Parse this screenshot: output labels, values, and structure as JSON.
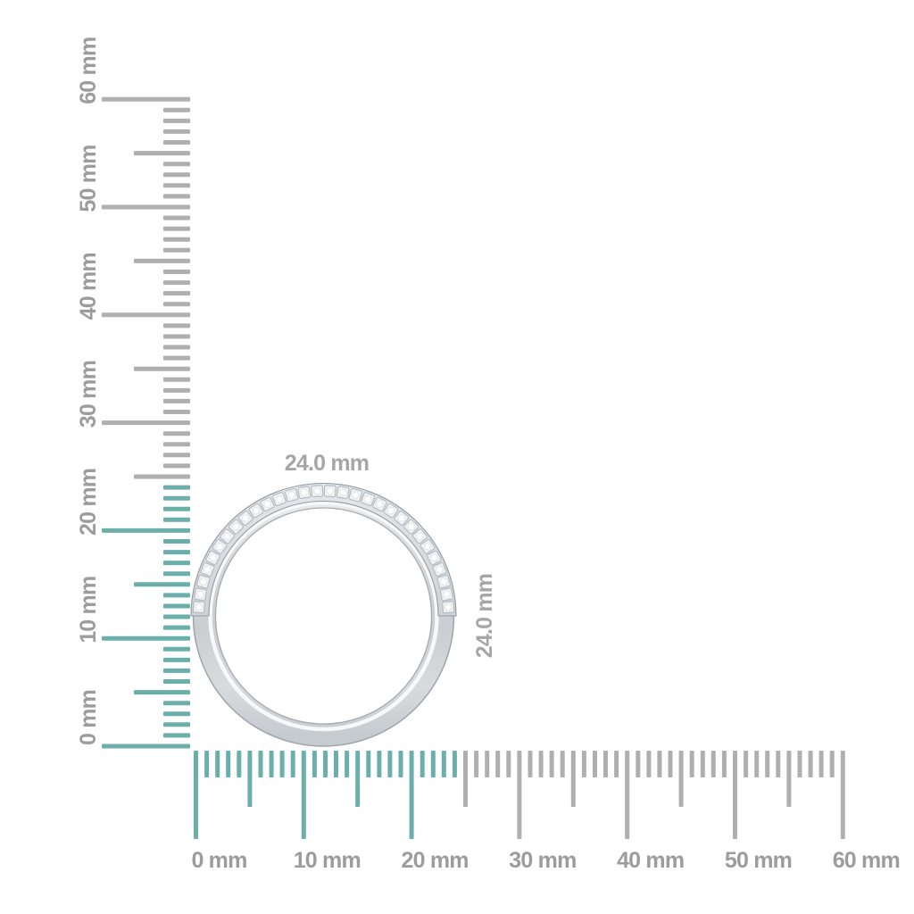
{
  "scene": {
    "background": "#ffffff",
    "description": "Diamond band ring shown to scale against vertical and horizontal millimeter rulers"
  },
  "ring": {
    "label_top": "24.0 mm",
    "label_right": "24.0 mm",
    "diameter_mm": 24.0,
    "stone_count": 30,
    "metal_colors": {
      "edge": "#99A1A7",
      "stone_fill": "#EFF2F5",
      "stone_edge": "#B3B9BF"
    }
  },
  "rulers": {
    "unit": "mm",
    "min_mm": 0,
    "max_mm": 60,
    "tick_step_mm": 1,
    "half_tick_step_mm": 5,
    "label_step_mm": 10,
    "highlight_up_to_mm": 24,
    "colors": {
      "highlight": "#6BAFAA",
      "tick_gray": "#AFAFAF",
      "label": "#9C9C9C",
      "dim_label": "#A6A6A6"
    },
    "vertical_labels": [
      "0 mm",
      "10 mm",
      "20 mm",
      "30 mm",
      "40 mm",
      "50 mm",
      "60 mm"
    ],
    "horizontal_labels": [
      "0 mm",
      "10 mm",
      "20 mm",
      "30 mm",
      "40 mm",
      "50 mm",
      "60 mm"
    ]
  }
}
